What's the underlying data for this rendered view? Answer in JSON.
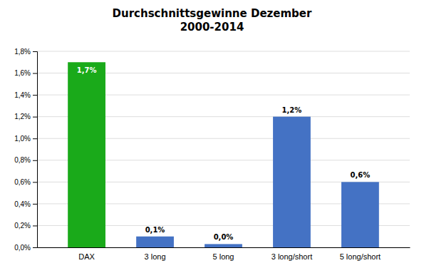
{
  "chart_data": {
    "type": "bar",
    "title": "Durchschnittsgewinne Dezember\n2000-2014",
    "categories": [
      "DAX",
      "3 long",
      "5 long",
      "3 long/short",
      "5 long/short"
    ],
    "values": [
      1.7,
      0.1,
      0.03,
      1.2,
      0.6
    ],
    "value_labels": [
      "1,7%",
      "0,1%",
      "0,0%",
      "1,2%",
      "0,6%"
    ],
    "data_labels": true,
    "colors": [
      "#1aaa1a",
      "#4472c4",
      "#4472c4",
      "#4472c4",
      "#4472c4"
    ],
    "ylim": [
      0,
      1.8
    ],
    "yticks": [
      {
        "value": 0.0,
        "label": "0,0%"
      },
      {
        "value": 0.2,
        "label": "0,2%"
      },
      {
        "value": 0.4,
        "label": "0,4%"
      },
      {
        "value": 0.6,
        "label": "0,6%"
      },
      {
        "value": 0.8,
        "label": "0,8%"
      },
      {
        "value": 1.0,
        "label": "1,0%"
      },
      {
        "value": 1.2,
        "label": "1,2%"
      },
      {
        "value": 1.4,
        "label": "1,4%"
      },
      {
        "value": 1.6,
        "label": "1,6%"
      },
      {
        "value": 1.8,
        "label": "1,8%"
      }
    ],
    "grid": true
  }
}
